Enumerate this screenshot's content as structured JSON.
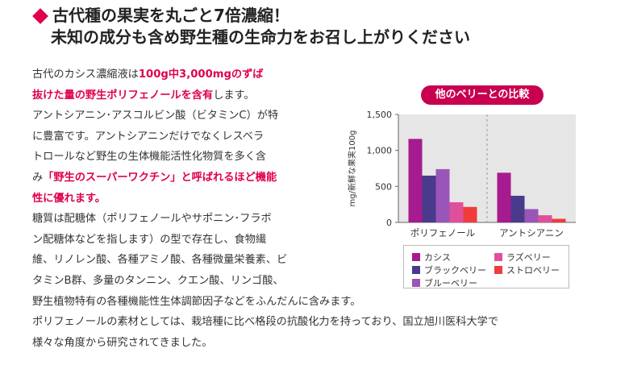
{
  "colors": {
    "accent": "#e0004f",
    "heading": "#222222",
    "text": "#333333",
    "plot_bg": "#e6e6e6",
    "pill_bg": "#c8004f"
  },
  "heading": {
    "line1": "古代種の果実を丸ごと7倍濃縮！",
    "line2": "未知の成分も含め野生種の生命力をお召し上がりください"
  },
  "body": {
    "p1_l1_a": "古代のカシス濃縮液は",
    "p1_l1_b": "100g中3,000mgのずば",
    "p1_l2_a": "抜けた量の野生ポリフェノールを含有",
    "p1_l2_b": "します。",
    "p2_l1": "アントシアニン･アスコルビン酸（ビタミンC）が特",
    "p2_l2": "に豊富です。アントシアニンだけでなくレスベラ",
    "p2_l3": "トロールなど野生の生体機能活性化物質を多く含",
    "p2_l4_a": "み",
    "p2_l4_b": "「野生のスーパーワクチン」と呼ばれるほど機能",
    "p2_l5": "性に優れます。",
    "p3_l1": "糖質は配糖体（ポリフェノールやサポニン･フラボ",
    "p3_l2": "ン配糖体などを指します）の型で存在し、食物繊",
    "p3_l3": "維、リノレン酸、各種アミノ酸、各種微量栄養素、ビ",
    "p3_l4": "タミンB群、多量のタンニン、クエン酸、リンゴ酸、",
    "p3_l5": "野生植物特有の各種機能性生体調節因子などをふんだんに含みます。",
    "p4_l1": "ポリフェノールの素材としては、栽培種に比べ格段の抗酸化力を持っており、国立旭川医科大学で",
    "p4_l2": "様々な角度から研究されてきました。"
  },
  "chart_data": {
    "type": "bar",
    "title": "他のベリーとの比較",
    "ylabel": "mg/新鮮な果実100g",
    "xlabel": "",
    "ylim": [
      0,
      1500
    ],
    "yticks": [
      0,
      500,
      1000,
      1500
    ],
    "ytick_labels": [
      "0",
      "500",
      "1,000",
      "1,500"
    ],
    "categories": [
      "ポリフェノール",
      "アントシアニン"
    ],
    "series": [
      {
        "name": "カシス",
        "color": "#a61b8f",
        "values": [
          1160,
          690
        ]
      },
      {
        "name": "ブラックベリー",
        "color": "#4a3a8c",
        "values": [
          650,
          370
        ]
      },
      {
        "name": "ブルーベリー",
        "color": "#9a55b8",
        "values": [
          740,
          185
        ]
      },
      {
        "name": "ラズベリー",
        "color": "#e0509a",
        "values": [
          280,
          100
        ]
      },
      {
        "name": "ストロベリー",
        "color": "#f03c3c",
        "values": [
          215,
          50
        ]
      }
    ],
    "legend": "bottom",
    "divider": "dashed"
  }
}
